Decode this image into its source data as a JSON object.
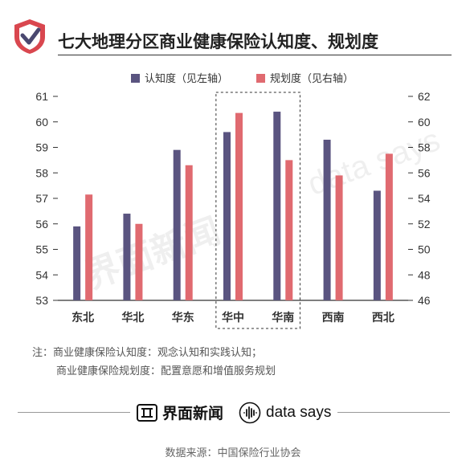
{
  "header": {
    "title": "七大地理分区商业健康保险认知度、规划度"
  },
  "notes": {
    "line1": "注：商业健康保险认知度：观念认知和实践认知；",
    "line2": "商业健康保险规划度：配置意愿和增值服务规划"
  },
  "footer": {
    "brand_name": "界面新闻",
    "datasays_name": "data says",
    "source": "数据来源：中国保险行业协会"
  },
  "watermark": {
    "brand": "界面新闻",
    "datasays": "data says"
  },
  "colors": {
    "series1": "#5a5480",
    "series2": "#e06a70",
    "logo_red": "#d9474f",
    "logo_dark": "#4a4870"
  },
  "chart_data": {
    "type": "bar",
    "categories": [
      "东北",
      "华北",
      "华东",
      "华中",
      "华南",
      "西南",
      "西北"
    ],
    "series": [
      {
        "name": "认知度（见左轴）",
        "axis": "left",
        "values": [
          55.9,
          56.4,
          58.9,
          59.6,
          60.4,
          59.3,
          57.3
        ]
      },
      {
        "name": "规划度（见右轴）",
        "axis": "right",
        "values": [
          54.3,
          52.0,
          56.6,
          60.7,
          57.0,
          55.8,
          57.5
        ]
      }
    ],
    "y_left": {
      "min": 53,
      "max": 61,
      "ticks": [
        53,
        54,
        55,
        56,
        57,
        58,
        59,
        60,
        61
      ]
    },
    "y_right": {
      "min": 46,
      "max": 62,
      "ticks": [
        46,
        48,
        50,
        52,
        54,
        56,
        58,
        60,
        62
      ]
    },
    "highlight_categories": [
      "华中",
      "华南"
    ],
    "legend_position": "top-center",
    "grid": false
  }
}
